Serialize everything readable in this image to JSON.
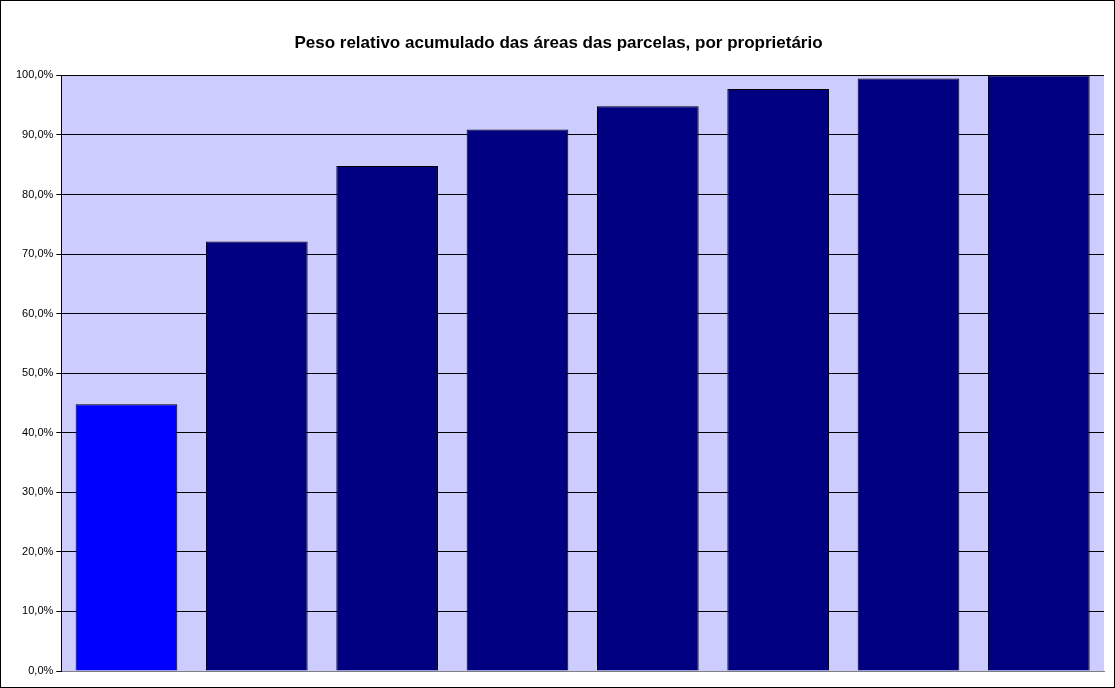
{
  "chart_data": {
    "type": "bar",
    "title": "Peso relativo acumulado das áreas das parcelas, por proprietário",
    "categories": [
      null,
      null,
      null,
      null,
      null,
      null,
      null,
      null
    ],
    "values": [
      44.8,
      72.1,
      84.8,
      90.9,
      94.8,
      97.7,
      99.5,
      100
    ],
    "colors": [
      "#0000ff",
      "#000080",
      "#000080",
      "#000080",
      "#000080",
      "#000080",
      "#000080",
      "#000080"
    ],
    "ylim": [
      0,
      100
    ],
    "yticks": [
      {
        "value": 0,
        "label": "0,0%"
      },
      {
        "value": 10,
        "label": "10,0%"
      },
      {
        "value": 20,
        "label": "20,0%"
      },
      {
        "value": 30,
        "label": "30,0%"
      },
      {
        "value": 40,
        "label": "40,0%"
      },
      {
        "value": 50,
        "label": "50,0%"
      },
      {
        "value": 60,
        "label": "60,0%"
      },
      {
        "value": 70,
        "label": "70,0%"
      },
      {
        "value": 80,
        "label": "80,0%"
      },
      {
        "value": 90,
        "label": "90,0%"
      },
      {
        "value": 100,
        "label": "100,0%"
      }
    ],
    "grid": "y",
    "legend": false
  }
}
